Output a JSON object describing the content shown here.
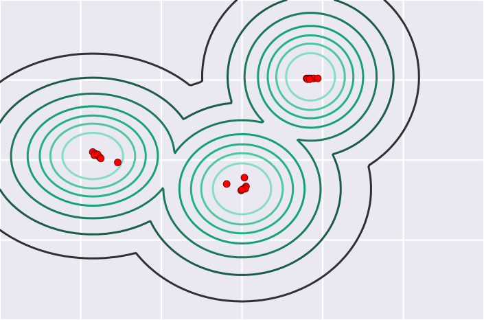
{
  "chart_data": {
    "type": "contour",
    "title": "",
    "xlabel": "",
    "ylabel": "",
    "xlim": [
      -3,
      3
    ],
    "ylim": [
      -2,
      2
    ],
    "grid": true,
    "background": "#eae9f2",
    "grid_color": "#ffffff",
    "point_color": "#ff0000",
    "levels": [
      {
        "level": 0.006,
        "color": "#2f2f35"
      },
      {
        "level": 0.05,
        "color": "#1c5b4b"
      },
      {
        "level": 0.15,
        "color": "#1a7a5e"
      },
      {
        "level": 0.3,
        "color": "#15a077"
      },
      {
        "level": 0.45,
        "color": "#21b187"
      },
      {
        "level": 0.6,
        "color": "#4ec6a0"
      },
      {
        "level": 0.77,
        "color": "#86dcc5"
      }
    ],
    "components": [
      {
        "mean": [
          -1.85,
          0.05
        ],
        "sd": [
          0.52,
          0.4
        ],
        "weight": 1.0
      },
      {
        "mean": [
          0.0,
          -0.36
        ],
        "sd": [
          0.5,
          0.44
        ],
        "weight": 1.0
      },
      {
        "mean": [
          0.85,
          1.04
        ],
        "sd": [
          0.42,
          0.41
        ],
        "weight": 1.0
      }
    ],
    "points": [
      {
        "x": -1.85,
        "y": 0.1
      },
      {
        "x": -1.82,
        "y": 0.08
      },
      {
        "x": -1.8,
        "y": 0.06
      },
      {
        "x": -1.78,
        "y": 0.05
      },
      {
        "x": -1.77,
        "y": 0.04
      },
      {
        "x": -1.76,
        "y": 0.03
      },
      {
        "x": -1.83,
        "y": 0.06
      },
      {
        "x": -1.79,
        "y": 0.07
      },
      {
        "x": -1.75,
        "y": 0.02
      },
      {
        "x": -1.54,
        "y": -0.03
      },
      {
        "x": -0.19,
        "y": -0.3
      },
      {
        "x": 0.03,
        "y": -0.22
      },
      {
        "x": 0.05,
        "y": -0.33
      },
      {
        "x": 0.02,
        "y": -0.36
      },
      {
        "x": -0.01,
        "y": -0.38
      },
      {
        "x": 0.04,
        "y": -0.36
      },
      {
        "x": 0.0,
        "y": -0.37
      },
      {
        "x": 0.8,
        "y": 1.02
      },
      {
        "x": 0.83,
        "y": 1.02
      },
      {
        "x": 0.86,
        "y": 1.02
      },
      {
        "x": 0.89,
        "y": 1.02
      },
      {
        "x": 0.81,
        "y": 1.01
      },
      {
        "x": 0.84,
        "y": 1.01
      },
      {
        "x": 0.94,
        "y": 1.02
      }
    ]
  }
}
